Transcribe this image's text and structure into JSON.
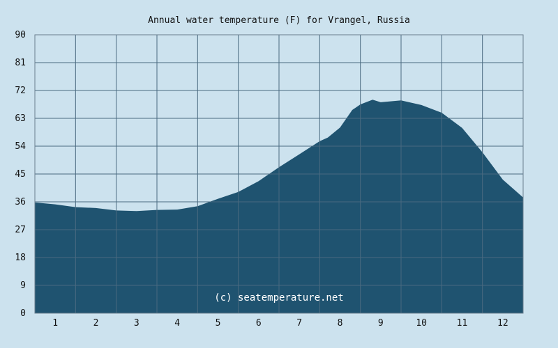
{
  "chart_data": {
    "type": "area",
    "title": "Annual water temperature (F) for Vrangel, Russia",
    "watermark": "(c) seatemperature.net",
    "xlabel": "",
    "ylabel": "",
    "ylim": [
      0,
      90
    ],
    "yticks": [
      "0",
      "9",
      "18",
      "27",
      "36",
      "45",
      "54",
      "63",
      "72",
      "81",
      "90"
    ],
    "xticks": [
      "1",
      "2",
      "3",
      "4",
      "5",
      "6",
      "7",
      "8",
      "9",
      "10",
      "11",
      "12"
    ],
    "grid": true,
    "colors": {
      "background": "#cce2ee",
      "fill": "#1f5370",
      "grid": "#4a6a80",
      "axis": "#6a7f8e"
    },
    "series": [
      {
        "x": [
          0.0,
          0.5,
          1.0,
          1.5,
          2.0,
          2.5,
          3.0,
          3.5,
          4.0,
          4.5,
          5.0,
          5.5,
          6.0,
          6.5,
          7.0,
          7.2,
          7.5,
          7.8,
          8.0,
          8.3,
          8.5,
          9.0,
          9.5,
          10.0,
          10.5,
          11.0,
          11.5,
          12.0
        ],
        "values": [
          35.8,
          35.2,
          34.3,
          34.0,
          33.2,
          33.0,
          33.4,
          33.5,
          34.6,
          37.0,
          39.2,
          42.7,
          47.2,
          51.4,
          55.6,
          56.8,
          60.0,
          65.7,
          67.5,
          69.0,
          68.2,
          68.8,
          67.3,
          64.8,
          59.9,
          52.0,
          43.2,
          37.4
        ]
      }
    ]
  }
}
